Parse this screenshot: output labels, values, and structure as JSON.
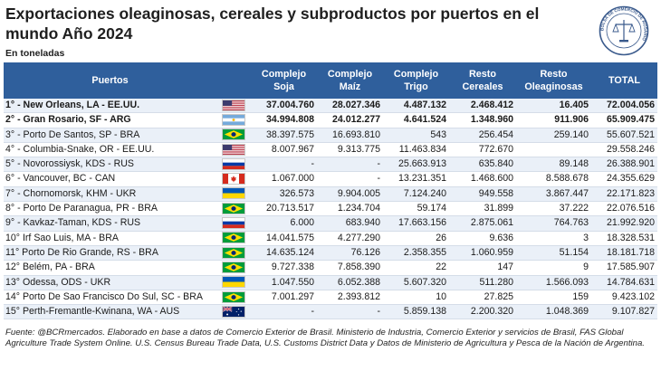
{
  "title": "Exportaciones oleaginosas, cereales y subproductos por puertos en el mundo Año 2024",
  "unit": "En toneladas",
  "seal_text": "BOLSA DE COMERCIO DE ROSARIO",
  "headers": {
    "puertos": "Puertos",
    "soja": "Complejo Soja",
    "maiz": "Complejo Maíz",
    "trigo": "Complejo Trigo",
    "cereales": "Resto Cereales",
    "oleaginosas": "Resto Oleaginosas",
    "total": "TOTAL"
  },
  "rows": [
    {
      "port": "1° - New Orleans,  LA - EE.UU.",
      "flag": "usa",
      "soja": "37.004.760",
      "maiz": "28.027.346",
      "trigo": "4.487.132",
      "cereales": "2.468.412",
      "oleaginosas": "16.405",
      "total": "72.004.056",
      "bold": true
    },
    {
      "port": "2° - Gran Rosario, SF - ARG",
      "flag": "arg",
      "soja": "34.994.808",
      "maiz": "24.012.277",
      "trigo": "4.641.524",
      "cereales": "1.348.960",
      "oleaginosas": "911.906",
      "total": "65.909.475",
      "bold": true
    },
    {
      "port": "3° - Porto De Santos, SP - BRA",
      "flag": "bra",
      "soja": "38.397.575",
      "maiz": "16.693.810",
      "trigo": "543",
      "cereales": "256.454",
      "oleaginosas": "259.140",
      "total": "55.607.521",
      "bold": false
    },
    {
      "port": "4° - Columbia-Snake,  OR - EE.UU.",
      "flag": "usa",
      "soja": "8.007.967",
      "maiz": "9.313.775",
      "trigo": "11.463.834",
      "cereales": "772.670",
      "oleaginosas": "",
      "total": "29.558.246",
      "bold": false
    },
    {
      "port": "5° - Novorossiysk, KDS - RUS",
      "flag": "rus",
      "soja": "-",
      "maiz": "-",
      "trigo": "25.663.913",
      "cereales": "635.840",
      "oleaginosas": "89.148",
      "total": "26.388.901",
      "bold": false
    },
    {
      "port": "6° - Vancouver, BC - CAN",
      "flag": "can",
      "soja": "1.067.000",
      "maiz": "-",
      "trigo": "13.231.351",
      "cereales": "1.468.600",
      "oleaginosas": "8.588.678",
      "total": "24.355.629",
      "bold": false
    },
    {
      "port": "7° - Chornomorsk, KHM - UKR",
      "flag": "ukr",
      "soja": "326.573",
      "maiz": "9.904.005",
      "trigo": "7.124.240",
      "cereales": "949.558",
      "oleaginosas": "3.867.447",
      "total": "22.171.823",
      "bold": false
    },
    {
      "port": "8° - Porto De Paranagua, PR - BRA",
      "flag": "bra",
      "soja": "20.713.517",
      "maiz": "1.234.704",
      "trigo": "59.174",
      "cereales": "31.899",
      "oleaginosas": "37.222",
      "total": "22.076.516",
      "bold": false
    },
    {
      "port": "9° - Kavkaz-Taman, KDS - RUS",
      "flag": "rus",
      "soja": "6.000",
      "maiz": "683.940",
      "trigo": "17.663.156",
      "cereales": "2.875.061",
      "oleaginosas": "764.763",
      "total": "21.992.920",
      "bold": false
    },
    {
      "port": "10° Irf Sao Luis, MA - BRA",
      "flag": "bra",
      "soja": "14.041.575",
      "maiz": "4.277.290",
      "trigo": "26",
      "cereales": "9.636",
      "oleaginosas": "3",
      "total": "18.328.531",
      "bold": false
    },
    {
      "port": "11° Porto De Rio Grande, RS - BRA",
      "flag": "bra",
      "soja": "14.635.124",
      "maiz": "76.126",
      "trigo": "2.358.355",
      "cereales": "1.060.959",
      "oleaginosas": "51.154",
      "total": "18.181.718",
      "bold": false
    },
    {
      "port": "12° Belém, PA - BRA",
      "flag": "bra",
      "soja": "9.727.338",
      "maiz": "7.858.390",
      "trigo": "22",
      "cereales": "147",
      "oleaginosas": "9",
      "total": "17.585.907",
      "bold": false
    },
    {
      "port": "13° Odessa, ODS - UKR",
      "flag": "ukr",
      "soja": "1.047.550",
      "maiz": "6.052.388",
      "trigo": "5.607.320",
      "cereales": "511.280",
      "oleaginosas": "1.566.093",
      "total": "14.784.631",
      "bold": false
    },
    {
      "port": "14° Porto De Sao Francisco Do Sul, SC - BRA",
      "flag": "bra",
      "soja": "7.001.297",
      "maiz": "2.393.812",
      "trigo": "10",
      "cereales": "27.825",
      "oleaginosas": "159",
      "total": "9.423.102",
      "bold": false
    },
    {
      "port": "15° Perth-Fremantle-Kwinana, WA - AUS",
      "flag": "aus",
      "soja": "-",
      "maiz": "-",
      "trigo": "5.859.138",
      "cereales": "2.200.320",
      "oleaginosas": "1.048.369",
      "total": "9.107.827",
      "bold": false
    }
  ],
  "source": "Fuente: @BCRmercados. Elaborado en base a datos de Comercio Exterior de Brasil. Ministerio de Industria, Comercio Exterior y servicios de Brasil, FAS Global Agriculture Trade System Online. U.S. Census Bureau Trade Data, U.S. Customs District Data y Datos de Ministerio de Agricultura y Pesca de la Nación de Argentina.",
  "colors": {
    "header_bg": "#2f5f9c",
    "header_text": "#ffffff",
    "row_alt": "#eaf0f8"
  }
}
